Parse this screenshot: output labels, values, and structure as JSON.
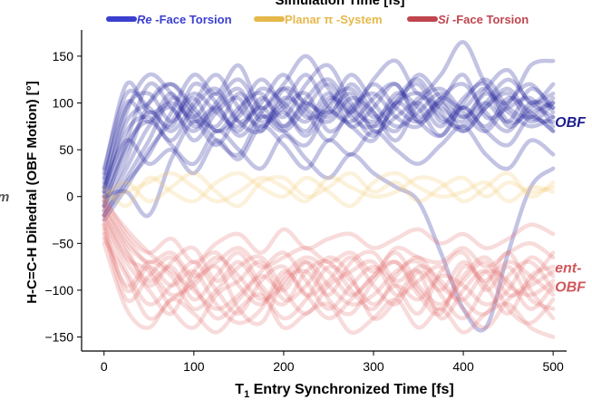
{
  "chart_data": {
    "type": "line",
    "top_label": "Simulation Time [fs]",
    "xlabel_prefix": "T",
    "xlabel_sub": "1",
    "xlabel_rest": " Entry Synchronized Time [fs]",
    "ylabel": "H-C=C-H Dihedral (OBF Motion) [°]",
    "left_fragment": "m",
    "xlim": [
      -25,
      515
    ],
    "ylim": [
      -165,
      178
    ],
    "x_ticks": [
      0,
      100,
      200,
      300,
      400,
      500
    ],
    "y_ticks": [
      150,
      100,
      50,
      0,
      -50,
      -100,
      -150
    ],
    "y_tick_labels": [
      "150",
      "100",
      "50",
      "0",
      "−50",
      "−100",
      "−150"
    ],
    "legend_placement": "top",
    "legend": [
      {
        "italic": "Re",
        "rest": " -Face Torsion",
        "color": "#3b3fd0"
      },
      {
        "italic": "",
        "rest": "Planar π -System",
        "color": "#e6b84a"
      },
      {
        "italic": "Si",
        "rest": " -Face Torsion",
        "color": "#c0454f"
      }
    ],
    "annotations": [
      {
        "name": "obf-label",
        "lines": [
          "OBF"
        ],
        "color": "#1f1f8f",
        "x": 500,
        "y": 80
      },
      {
        "name": "ent-obf-label",
        "lines": [
          "ent-",
          "OBF"
        ],
        "color": "#d0575c",
        "x": 500,
        "y": -85
      }
    ],
    "series": [
      {
        "color": "#26269e",
        "opacity": 0.28,
        "x": [
          0,
          25,
          50,
          75,
          100,
          125,
          150,
          175,
          200,
          225,
          250,
          275,
          300,
          325,
          350,
          375,
          400,
          425,
          450,
          475,
          500
        ],
        "trajectories": [
          [
            20,
            95,
            110,
            80,
            105,
            70,
            95,
            110,
            75,
            100,
            85,
            120,
            90,
            70,
            105,
            95,
            80,
            110,
            90,
            75,
            85
          ],
          [
            -10,
            40,
            100,
            120,
            90,
            75,
            110,
            85,
            100,
            130,
            95,
            80,
            105,
            120,
            85,
            100,
            70,
            95,
            115,
            85,
            80
          ],
          [
            5,
            70,
            85,
            60,
            95,
            115,
            80,
            70,
            105,
            90,
            60,
            95,
            110,
            85,
            75,
            105,
            120,
            90,
            70,
            100,
            95
          ],
          [
            -20,
            20,
            60,
            105,
            85,
            55,
            90,
            125,
            95,
            70,
            105,
            90,
            65,
            100,
            120,
            80,
            95,
            75,
            105,
            90,
            70
          ],
          [
            30,
            110,
            95,
            75,
            120,
            100,
            65,
            90,
            115,
            85,
            95,
            130,
            100,
            75,
            90,
            110,
            85,
            100,
            80,
            115,
            95
          ],
          [
            0,
            60,
            120,
            95,
            70,
            100,
            125,
            90,
            70,
            95,
            120,
            85,
            75,
            110,
            95,
            65,
            100,
            125,
            95,
            85,
            105
          ],
          [
            -25,
            10,
            50,
            80,
            110,
            90,
            75,
            100,
            130,
            95,
            80,
            105,
            90,
            60,
            100,
            115,
            90,
            70,
            100,
            120,
            90
          ],
          [
            15,
            100,
            80,
            110,
            75,
            95,
            115,
            80,
            95,
            110,
            70,
            90,
            120,
            95,
            80,
            105,
            95,
            115,
            75,
            95,
            110
          ],
          [
            -5,
            50,
            90,
            70,
            100,
            130,
            95,
            75,
            90,
            65,
            100,
            115,
            85,
            105,
            125,
            90,
            70,
            95,
            110,
            80,
            100
          ],
          [
            10,
            80,
            100,
            120,
            95,
            70,
            85,
            115,
            100,
            80,
            110,
            75,
            95,
            120,
            80,
            100,
            130,
            85,
            95,
            105,
            75
          ],
          [
            -15,
            30,
            75,
            95,
            60,
            90,
            105,
            70,
            115,
            100,
            90,
            110,
            70,
            85,
            100,
            75,
            105,
            120,
            80,
            90,
            100
          ],
          [
            25,
            120,
            90,
            100,
            85,
            110,
            80,
            95,
            75,
            105,
            125,
            95,
            80,
            100,
            110,
            85,
            75,
            100,
            125,
            100,
            85
          ],
          [
            0,
            5,
            -20,
            40,
            80,
            60,
            45,
            85,
            70,
            55,
            90,
            75,
            60,
            100,
            80,
            65,
            95,
            70,
            55,
            85,
            70
          ],
          [
            -10,
            55,
            80,
            55,
            35,
            70,
            50,
            30,
            65,
            40,
            20,
            45,
            25,
            10,
            -5,
            -60,
            -120,
            -140,
            -60,
            10,
            30
          ],
          [
            10,
            60,
            35,
            50,
            25,
            60,
            40,
            75,
            55,
            30,
            60,
            45,
            70,
            50,
            35,
            55,
            75,
            45,
            30,
            60,
            45
          ],
          [
            -20,
            15,
            45,
            90,
            130,
            110,
            140,
            95,
            120,
            150,
            115,
            90,
            125,
            145,
            110,
            130,
            165,
            120,
            100,
            140,
            145
          ],
          [
            5,
            90,
            130,
            110,
            80,
            95,
            70,
            105,
            85,
            120,
            140,
            100,
            75,
            95,
            130,
            105,
            85,
            115,
            135,
            100,
            120
          ]
        ]
      },
      {
        "color": "#f2c660",
        "opacity": 0.22,
        "x": [
          0,
          25,
          50,
          75,
          100,
          125,
          150,
          175,
          200,
          225,
          250,
          275,
          300,
          325,
          350,
          375,
          400,
          425,
          450,
          475,
          500
        ],
        "trajectories": [
          [
            0,
            15,
            -5,
            10,
            25,
            5,
            -10,
            15,
            20,
            0,
            10,
            25,
            5,
            15,
            -5,
            10,
            20,
            0,
            15,
            5,
            10
          ],
          [
            10,
            -10,
            20,
            5,
            -5,
            15,
            25,
            10,
            0,
            20,
            5,
            -10,
            15,
            25,
            10,
            0,
            5,
            15,
            -5,
            10,
            5
          ],
          [
            -5,
            5,
            15,
            25,
            10,
            -5,
            5,
            20,
            10,
            -5,
            20,
            10,
            0,
            5,
            20,
            15,
            -5,
            10,
            25,
            0,
            15
          ]
        ]
      },
      {
        "color": "#e06a6a",
        "opacity": 0.24,
        "x": [
          0,
          25,
          50,
          75,
          100,
          125,
          150,
          175,
          200,
          225,
          250,
          275,
          300,
          325,
          350,
          375,
          400,
          425,
          450,
          475,
          500
        ],
        "trajectories": [
          [
            -20,
            -60,
            -90,
            -75,
            -110,
            -85,
            -60,
            -95,
            -115,
            -80,
            -70,
            -100,
            -120,
            -85,
            -65,
            -95,
            -110,
            -80,
            -90,
            -120,
            -95
          ],
          [
            -30,
            -80,
            -115,
            -95,
            -70,
            -100,
            -125,
            -90,
            -75,
            -105,
            -90,
            -65,
            -95,
            -115,
            -80,
            -100,
            -70,
            -95,
            -125,
            -85,
            -75
          ],
          [
            -10,
            -45,
            -75,
            -105,
            -90,
            -65,
            -85,
            -110,
            -95,
            -70,
            -110,
            -125,
            -90,
            -70,
            -100,
            -120,
            -85,
            -65,
            -95,
            -105,
            -90
          ],
          [
            -40,
            -95,
            -70,
            -85,
            -120,
            -100,
            -75,
            -65,
            -100,
            -125,
            -95,
            -80,
            -70,
            -105,
            -90,
            -75,
            -110,
            -125,
            -85,
            -70,
            -100
          ],
          [
            -25,
            -70,
            -100,
            -125,
            -80,
            -60,
            -95,
            -115,
            -85,
            -65,
            -80,
            -105,
            -85,
            -60,
            -95,
            -115,
            -90,
            -70,
            -105,
            -95,
            -80
          ],
          [
            -5,
            -35,
            -60,
            -80,
            -100,
            -120,
            -105,
            -80,
            -60,
            -90,
            -120,
            -95,
            -75,
            -95,
            -125,
            -80,
            -60,
            -100,
            -75,
            -110,
            -120
          ],
          [
            -35,
            -110,
            -85,
            -65,
            -95,
            -130,
            -110,
            -85,
            -100,
            -70,
            -95,
            -115,
            -105,
            -80,
            -70,
            -105,
            -130,
            -95,
            -70,
            -85,
            -105
          ],
          [
            -15,
            -55,
            -95,
            -70,
            -55,
            -90,
            -70,
            -100,
            -130,
            -110,
            -75,
            -90,
            -115,
            -95,
            -110,
            -85,
            -95,
            -115,
            -100,
            -65,
            -85
          ],
          [
            -45,
            -85,
            -130,
            -110,
            -95,
            -75,
            -120,
            -135,
            -90,
            -80,
            -105,
            -70,
            -60,
            -90,
            -80,
            -130,
            -100,
            -80,
            -120,
            -135,
            -110
          ],
          [
            -20,
            -65,
            -80,
            -120,
            -140,
            -105,
            -90,
            -70,
            -110,
            -95,
            -65,
            -85,
            -130,
            -110,
            -75,
            -90,
            -120,
            -140,
            -110,
            -90,
            -60
          ],
          [
            -30,
            -100,
            -75,
            -95,
            -80,
            -115,
            -135,
            -120,
            -80,
            -105,
            -130,
            -110,
            -85,
            -70,
            -105,
            -125,
            -75,
            -90,
            -60,
            -100,
            -130
          ],
          [
            -10,
            -50,
            -70,
            -60,
            -85,
            -70,
            -55,
            -75,
            -65,
            -55,
            -70,
            -60,
            -80,
            -55,
            -65,
            -70,
            -55,
            -75,
            -60,
            -50,
            -65
          ],
          [
            0,
            -40,
            -60,
            -45,
            -70,
            -50,
            -40,
            -60,
            -35,
            -55,
            -45,
            -40,
            -55,
            -45,
            -35,
            -50,
            -40,
            -55,
            -45,
            -30,
            -40
          ],
          [
            -50,
            -120,
            -140,
            -110,
            -125,
            -145,
            -120,
            -105,
            -140,
            -125,
            -115,
            -145,
            -130,
            -110,
            -140,
            -120,
            -145,
            -125,
            -115,
            -140,
            -150
          ]
        ]
      }
    ]
  }
}
